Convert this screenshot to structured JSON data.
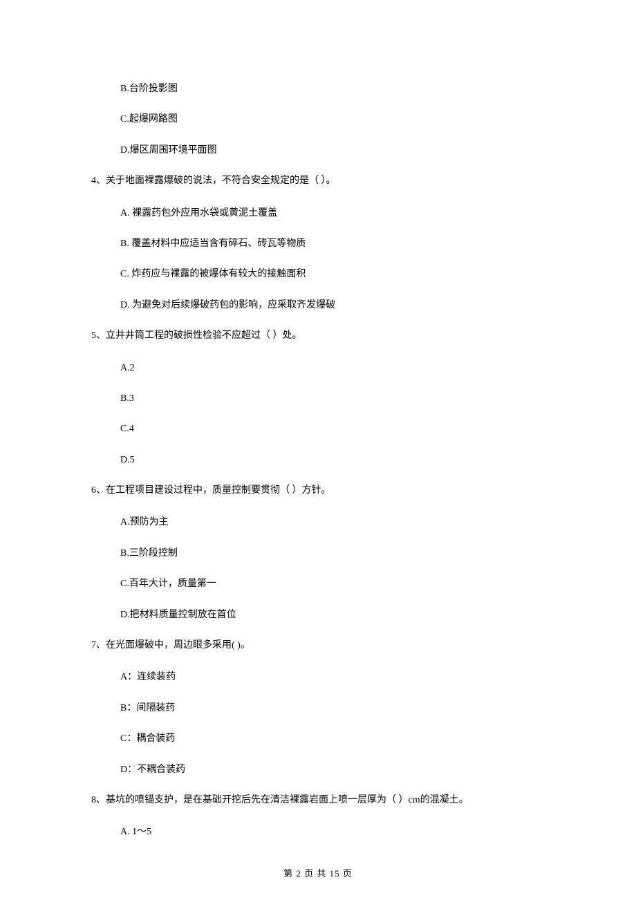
{
  "partial_options": {
    "opt_b": "B.台阶投影图",
    "opt_c": "C.起爆网路图",
    "opt_d": "D.爆区周围环境平面图"
  },
  "q4": {
    "stem": "4、关于地面裸露爆破的说法，不符合安全规定的是（    ）。",
    "opt_a": "A.  裸露药包外应用水袋或黄泥土覆盖",
    "opt_b": "B.  覆盖材料中应适当含有碎石、砖瓦等物质",
    "opt_c": "C.  炸药应与裸露的被爆体有较大的接触面积",
    "opt_d": "D.  为避免对后续爆破药包的影响，应采取齐发爆破"
  },
  "q5": {
    "stem": "5、立井井筒工程的破损性检验不应超过（    ）处。",
    "opt_a": "A.2",
    "opt_b": "B.3",
    "opt_c": "C.4",
    "opt_d": "D.5"
  },
  "q6": {
    "stem": "6、在工程项目建设过程中，质量控制要贯彻（    ）方针。",
    "opt_a": "A.预防为主",
    "opt_b": "B.三阶段控制",
    "opt_c": "C.百年大计，质量第一",
    "opt_d": "D.把材料质量控制放在首位"
  },
  "q7": {
    "stem": "7、在光面爆破中，周边眼多采用(    )。",
    "opt_a": "A：连续装药",
    "opt_b": "B：间隔装药",
    "opt_c": "C：耦合装药",
    "opt_d": "D：不耦合装药"
  },
  "q8": {
    "stem": "8、基坑的喷锚支护，是在基础开挖后先在清洁裸露岩面上喷一层厚为（    ）cm的混凝土。",
    "opt_a": "A.  1～5"
  },
  "footer": "第 2 页 共 15 页"
}
